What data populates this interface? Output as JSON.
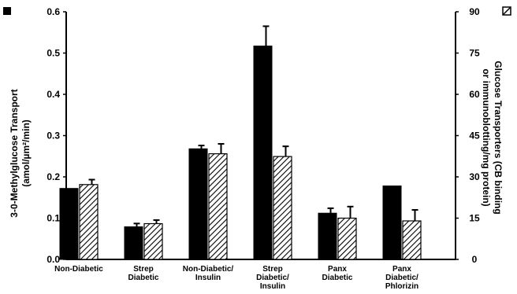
{
  "chart_data": {
    "type": "bar",
    "categories": [
      [
        "Non-Diabetic"
      ],
      [
        "Strep",
        "Diabetic"
      ],
      [
        "Non-Diabetic/",
        "Insulin"
      ],
      [
        "Strep",
        "Diabetic/",
        "Insulin"
      ],
      [
        "Panx",
        "Diabetic"
      ],
      [
        "Panx",
        "Diabetic/",
        "Phlorizin"
      ]
    ],
    "series": [
      {
        "axis": "left",
        "fill": "solid",
        "color": "#000000",
        "values": [
          0.172,
          0.079,
          0.268,
          0.517,
          0.112,
          0.178
        ],
        "errors": [
          0.0,
          0.008,
          0.008,
          0.048,
          0.012,
          0.0
        ]
      },
      {
        "axis": "right",
        "fill": "hatched",
        "color": "#000000",
        "values": [
          27.2,
          13.0,
          38.4,
          37.4,
          15.0,
          14.0
        ],
        "errors": [
          1.8,
          1.3,
          3.6,
          3.7,
          4.2,
          4.0
        ]
      }
    ],
    "y_left": {
      "label_lines": [
        "3-0-Methylglucose Transport",
        "(amol/µm²/min)"
      ],
      "ylim": [
        0,
        0.6
      ],
      "ticks": [
        "0.0",
        "0.1",
        "0.2",
        "0.3",
        "0.4",
        "0.5",
        "0.6"
      ]
    },
    "y_right": {
      "label_lines": [
        "Glucose Transporters (CB binding",
        "or immunoblotting/mg protein)"
      ],
      "ylim": [
        0,
        90
      ],
      "ticks": [
        "0",
        "15",
        "30",
        "45",
        "60",
        "75",
        "90"
      ]
    },
    "legend": {
      "solid_marker": "■",
      "hatched_marker": "▧"
    }
  }
}
